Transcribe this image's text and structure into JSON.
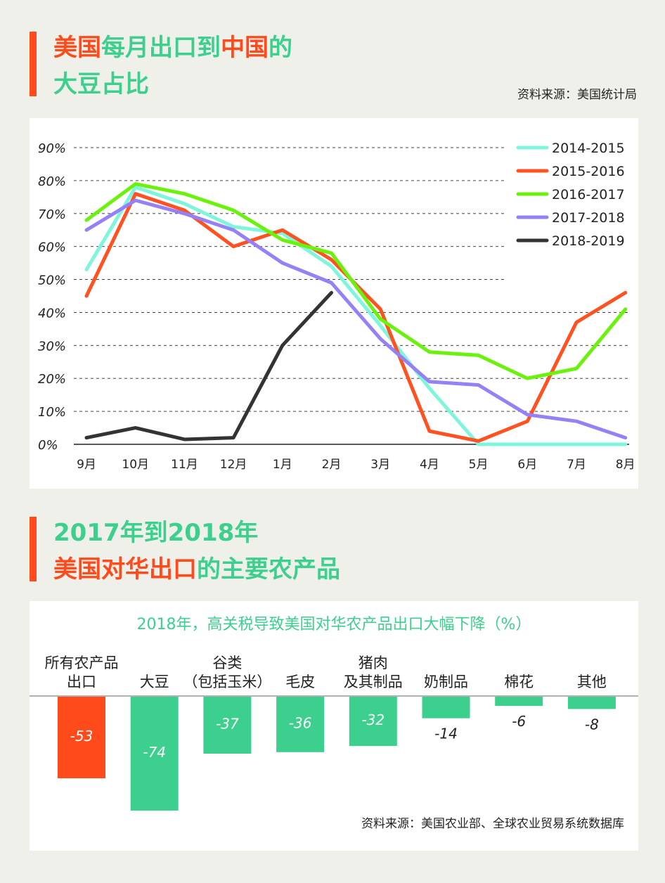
{
  "section1": {
    "title_line1": [
      {
        "text": "美国",
        "color": "red"
      },
      {
        "text": "每月出口到",
        "color": "green"
      },
      {
        "text": "中国",
        "color": "red"
      },
      {
        "text": "的",
        "color": "green"
      }
    ],
    "title_line2": [
      {
        "text": "大豆占比",
        "color": "green"
      }
    ],
    "source": "资料来源：美国统计局"
  },
  "section2": {
    "title_line1": [
      {
        "text": "2017年到2018年",
        "color": "green"
      }
    ],
    "title_line2": [
      {
        "text": "美国对华出口",
        "color": "red"
      },
      {
        "text": "的主要农产品",
        "color": "green"
      }
    ],
    "source": "资料来源：美国农业部、全球农业贸易系统数据库"
  },
  "colors": {
    "red": "#ff4a1c",
    "green": "#3ccf8e"
  },
  "chart_data": [
    {
      "type": "line",
      "categories": [
        "9月",
        "10月",
        "11月",
        "12月",
        "1月",
        "2月",
        "3月",
        "4月",
        "5月",
        "6月",
        "7月",
        "8月"
      ],
      "ylim": [
        0,
        90
      ],
      "yticks": [
        "0%",
        "10%",
        "20%",
        "30%",
        "40%",
        "50%",
        "60%",
        "70%",
        "80%",
        "90%"
      ],
      "grid": true,
      "legend": "top-right",
      "series": [
        {
          "name": "2014-2015",
          "color": "#7ff5dc",
          "values": [
            53,
            78,
            73,
            66,
            64,
            54,
            36,
            17,
            0,
            0,
            0,
            0
          ]
        },
        {
          "name": "2015-2016",
          "color": "#ff5220",
          "values": [
            45,
            76,
            71,
            60,
            65,
            56,
            41,
            4,
            1,
            7,
            37,
            46
          ]
        },
        {
          "name": "2016-2017",
          "color": "#6af20c",
          "values": [
            68,
            79,
            76,
            71,
            62,
            58,
            38,
            28,
            27,
            20,
            23,
            41
          ]
        },
        {
          "name": "2017-2018",
          "color": "#9580f5",
          "values": [
            65,
            74,
            70,
            65,
            55,
            49,
            32,
            19,
            18,
            9,
            7,
            2
          ]
        },
        {
          "name": "2018-2019",
          "color": "#333333",
          "values": [
            2,
            5,
            1.5,
            2,
            30,
            46,
            null,
            null,
            null,
            null,
            null,
            null
          ]
        }
      ]
    },
    {
      "type": "bar",
      "title": "2018年，高关税导致美国对华农产品出口大幅下降（%）",
      "categories": [
        [
          "所有农产品",
          "出口"
        ],
        [
          "",
          "大豆"
        ],
        [
          "谷类",
          "（包括玉米）"
        ],
        [
          "",
          "毛皮"
        ],
        [
          "猪肉",
          "及其制品"
        ],
        [
          "",
          "奶制品"
        ],
        [
          "",
          "棉花"
        ],
        [
          "",
          "其他"
        ]
      ],
      "values": [
        -53,
        -74,
        -37,
        -36,
        -32,
        -14,
        -6,
        -8
      ],
      "bar_colors": [
        "#ff4a1c",
        "#3ccf8e",
        "#3ccf8e",
        "#3ccf8e",
        "#3ccf8e",
        "#3ccf8e",
        "#3ccf8e",
        "#3ccf8e"
      ],
      "labels": [
        "-53",
        "-74",
        "-37",
        "-36",
        "-32",
        "-14",
        "-6",
        "-8"
      ]
    }
  ]
}
